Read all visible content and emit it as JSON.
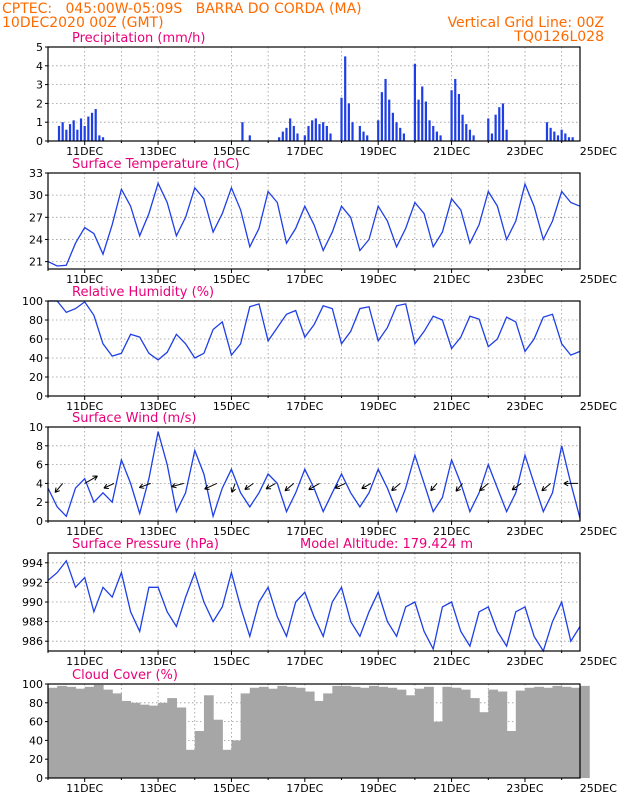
{
  "header": {
    "line1": "CPTEC:   045:00W-05:09S   BARRA DO CORDA (MA)",
    "line2": "10DEC2020 00Z (GMT)",
    "grid_note": "Vertical Grid Line: 00Z",
    "run_id": "TQ0126L028"
  },
  "colors": {
    "header": "#ff6a00",
    "title": "#e8007a",
    "series": "#1f3fe6",
    "cloud": "#a6a6a6",
    "grid": "#9a9a9a"
  },
  "chart_data": [
    {
      "id": "precip",
      "type": "bar",
      "title": "Precipitation (mm/h)",
      "ylim": [
        0,
        5
      ],
      "yticks": [
        0,
        1,
        2,
        3,
        4,
        5
      ],
      "xtick_labels": [
        "11DEC",
        "13DEC",
        "15DEC",
        "17DEC",
        "19DEC",
        "21DEC",
        "23DEC",
        "25DEC"
      ],
      "x": [
        0.3,
        0.4,
        0.5,
        0.6,
        0.7,
        0.8,
        0.9,
        1.0,
        1.1,
        1.2,
        1.3,
        1.4,
        1.5,
        5.3,
        5.5,
        6.3,
        6.4,
        6.5,
        6.6,
        6.7,
        6.8,
        7.0,
        7.1,
        7.2,
        7.3,
        7.4,
        7.5,
        7.6,
        7.7,
        8.0,
        8.1,
        8.2,
        8.3,
        8.5,
        8.6,
        8.7,
        9.0,
        9.1,
        9.2,
        9.3,
        9.4,
        9.5,
        9.6,
        9.7,
        10.0,
        10.1,
        10.2,
        10.3,
        10.4,
        10.5,
        10.6,
        10.7,
        11.0,
        11.1,
        11.2,
        11.3,
        11.4,
        11.5,
        11.6,
        12.0,
        12.1,
        12.2,
        12.3,
        12.4,
        12.5,
        13.6,
        13.7,
        13.8,
        13.9,
        14.0,
        14.1,
        14.2,
        14.3
      ],
      "values": [
        0.8,
        1.0,
        0.6,
        0.9,
        1.1,
        0.6,
        1.2,
        0.8,
        1.3,
        1.5,
        1.7,
        0.3,
        0.2,
        1.0,
        0.3,
        0.2,
        0.5,
        0.7,
        1.2,
        0.8,
        0.4,
        0.3,
        0.8,
        1.1,
        1.2,
        0.9,
        1.0,
        0.8,
        0.4,
        2.3,
        4.5,
        2.0,
        1.0,
        0.8,
        0.5,
        0.3,
        1.1,
        2.6,
        3.3,
        2.2,
        1.5,
        1.0,
        0.7,
        0.4,
        4.1,
        2.2,
        2.9,
        2.1,
        1.1,
        0.8,
        0.5,
        0.3,
        2.7,
        3.3,
        2.5,
        1.4,
        0.9,
        0.6,
        0.3,
        1.2,
        0.4,
        1.4,
        1.8,
        2.0,
        0.6,
        1.0,
        0.7,
        0.5,
        0.3,
        0.6,
        0.4,
        0.2,
        0.2
      ]
    },
    {
      "id": "temperature",
      "type": "line",
      "title": "Surface Temperature (nC)",
      "ylim": [
        20,
        33
      ],
      "yticks": [
        21,
        24,
        27,
        30,
        33
      ],
      "xtick_labels": [
        "11DEC",
        "13DEC",
        "15DEC",
        "17DEC",
        "19DEC",
        "21DEC",
        "23DEC",
        "25DEC"
      ],
      "x": [
        0,
        0.25,
        0.5,
        0.75,
        1.0,
        1.25,
        1.5,
        1.75,
        2.0,
        2.25,
        2.5,
        2.75,
        3.0,
        3.25,
        3.5,
        3.75,
        4.0,
        4.25,
        4.5,
        4.75,
        5.0,
        5.25,
        5.5,
        5.75,
        6.0,
        6.25,
        6.5,
        6.75,
        7.0,
        7.25,
        7.5,
        7.75,
        8.0,
        8.25,
        8.5,
        8.75,
        9.0,
        9.25,
        9.5,
        9.75,
        10.0,
        10.25,
        10.5,
        10.75,
        11.0,
        11.25,
        11.5,
        11.75,
        12.0,
        12.25,
        12.5,
        12.75,
        13.0,
        13.25,
        13.5,
        13.75,
        14.0,
        14.25,
        14.5
      ],
      "values": [
        21.0,
        20.4,
        20.5,
        23.5,
        25.6,
        24.8,
        22.0,
        26.0,
        30.8,
        28.5,
        24.5,
        27.5,
        31.6,
        29.0,
        24.5,
        27.0,
        31.0,
        29.5,
        25.0,
        27.5,
        31.0,
        28.0,
        23.0,
        25.5,
        30.5,
        29.0,
        23.5,
        25.5,
        28.5,
        26.0,
        22.5,
        25.0,
        28.5,
        27.0,
        22.5,
        24.0,
        28.5,
        26.5,
        23.0,
        25.5,
        29.0,
        27.5,
        23.0,
        25.0,
        29.5,
        28.0,
        23.5,
        26.0,
        30.5,
        28.5,
        24.0,
        26.5,
        31.5,
        28.5,
        24.0,
        26.5,
        30.5,
        29.0,
        28.5
      ]
    },
    {
      "id": "humidity",
      "type": "line",
      "title": "Relative Humidity (%)",
      "ylim": [
        0,
        100
      ],
      "yticks": [
        0,
        20,
        40,
        60,
        80,
        100
      ],
      "xtick_labels": [
        "11DEC",
        "13DEC",
        "15DEC",
        "17DEC",
        "19DEC",
        "21DEC",
        "23DEC",
        "25DEC"
      ],
      "x": [
        0,
        0.25,
        0.5,
        0.75,
        1.0,
        1.25,
        1.5,
        1.75,
        2.0,
        2.25,
        2.5,
        2.75,
        3.0,
        3.25,
        3.5,
        3.75,
        4.0,
        4.25,
        4.5,
        4.75,
        5.0,
        5.25,
        5.5,
        5.75,
        6.0,
        6.25,
        6.5,
        6.75,
        7.0,
        7.25,
        7.5,
        7.75,
        8.0,
        8.25,
        8.5,
        8.75,
        9.0,
        9.25,
        9.5,
        9.75,
        10.0,
        10.25,
        10.5,
        10.75,
        11.0,
        11.25,
        11.5,
        11.75,
        12.0,
        12.25,
        12.5,
        12.75,
        13.0,
        13.25,
        13.5,
        13.75,
        14.0,
        14.25,
        14.5
      ],
      "values": [
        100,
        100,
        88,
        92,
        99,
        85,
        55,
        42,
        45,
        65,
        62,
        45,
        38,
        46,
        65,
        55,
        40,
        45,
        70,
        78,
        43,
        55,
        94,
        97,
        58,
        72,
        86,
        90,
        62,
        75,
        95,
        92,
        55,
        68,
        92,
        94,
        58,
        72,
        95,
        97,
        55,
        68,
        84,
        80,
        50,
        62,
        84,
        81,
        52,
        60,
        83,
        78,
        47,
        60,
        83,
        86,
        55,
        43,
        47
      ]
    },
    {
      "id": "wind",
      "type": "line",
      "title": "Surface Wind (m/s)",
      "ylim": [
        0,
        10
      ],
      "yticks": [
        0,
        2,
        4,
        6,
        8,
        10
      ],
      "xtick_labels": [
        "11DEC",
        "13DEC",
        "15DEC",
        "17DEC",
        "19DEC",
        "21DEC",
        "23DEC",
        "25DEC"
      ],
      "x": [
        0,
        0.25,
        0.5,
        0.75,
        1.0,
        1.25,
        1.5,
        1.75,
        2.0,
        2.25,
        2.5,
        2.75,
        3.0,
        3.25,
        3.5,
        3.75,
        4.0,
        4.25,
        4.5,
        4.75,
        5.0,
        5.25,
        5.5,
        5.75,
        6.0,
        6.25,
        6.5,
        6.75,
        7.0,
        7.25,
        7.5,
        7.75,
        8.0,
        8.25,
        8.5,
        8.75,
        9.0,
        9.25,
        9.5,
        9.75,
        10.0,
        10.25,
        10.5,
        10.75,
        11.0,
        11.25,
        11.5,
        11.75,
        12.0,
        12.25,
        12.5,
        12.75,
        13.0,
        13.25,
        13.5,
        13.75,
        14.0,
        14.25,
        14.5
      ],
      "values": [
        3.5,
        1.5,
        0.5,
        3.5,
        4.5,
        2.0,
        3.0,
        2.0,
        6.5,
        4.0,
        0.8,
        4.5,
        9.5,
        6.0,
        1.0,
        3.0,
        7.5,
        5.0,
        0.5,
        3.5,
        5.5,
        3.0,
        1.5,
        3.0,
        5.0,
        4.0,
        1.0,
        3.0,
        5.5,
        3.5,
        1.0,
        3.0,
        5.0,
        3.0,
        1.5,
        3.0,
        5.5,
        3.5,
        1.0,
        3.5,
        7.0,
        4.0,
        1.0,
        2.5,
        6.5,
        4.0,
        1.0,
        3.0,
        6.0,
        3.5,
        1.0,
        3.0,
        7.0,
        4.0,
        1.0,
        3.0,
        8.0,
        4.0,
        0.3
      ],
      "vectors": [
        {
          "x": 0.4,
          "speed": 3.7,
          "dir": 220
        },
        {
          "x": 1.0,
          "speed": 4.6,
          "dir": 60
        },
        {
          "x": 1.8,
          "speed": 3.5,
          "dir": 245
        },
        {
          "x": 2.8,
          "speed": 3.8,
          "dir": 250
        },
        {
          "x": 3.7,
          "speed": 3.9,
          "dir": 255
        },
        {
          "x": 4.6,
          "speed": 4.2,
          "dir": 245
        },
        {
          "x": 5.1,
          "speed": 3.0,
          "dir": 200
        },
        {
          "x": 5.6,
          "speed": 3.3,
          "dir": 235
        },
        {
          "x": 6.2,
          "speed": 3.4,
          "dir": 240
        },
        {
          "x": 6.7,
          "speed": 3.6,
          "dir": 230
        },
        {
          "x": 7.4,
          "speed": 3.9,
          "dir": 240
        },
        {
          "x": 8.1,
          "speed": 3.5,
          "dir": 245
        },
        {
          "x": 8.8,
          "speed": 3.3,
          "dir": 240
        },
        {
          "x": 9.6,
          "speed": 3.5,
          "dir": 230
        },
        {
          "x": 10.6,
          "speed": 3.0,
          "dir": 220
        },
        {
          "x": 11.3,
          "speed": 3.2,
          "dir": 220
        },
        {
          "x": 12.0,
          "speed": 3.5,
          "dir": 230
        },
        {
          "x": 12.9,
          "speed": 3.5,
          "dir": 235
        },
        {
          "x": 13.7,
          "speed": 3.6,
          "dir": 230
        },
        {
          "x": 14.45,
          "speed": 4.5,
          "dir": 270
        }
      ]
    },
    {
      "id": "pressure",
      "type": "line",
      "title": "Surface Pressure (hPa)",
      "subtitle": "Model Altitude: 179.424 m",
      "ylim": [
        985,
        995
      ],
      "yticks": [
        986,
        988,
        990,
        992,
        994
      ],
      "xtick_labels": [
        "11DEC",
        "13DEC",
        "15DEC",
        "17DEC",
        "19DEC",
        "21DEC",
        "23DEC",
        "25DEC"
      ],
      "x": [
        0,
        0.25,
        0.5,
        0.75,
        1.0,
        1.25,
        1.5,
        1.75,
        2.0,
        2.25,
        2.5,
        2.75,
        3.0,
        3.25,
        3.5,
        3.75,
        4.0,
        4.25,
        4.5,
        4.75,
        5.0,
        5.25,
        5.5,
        5.75,
        6.0,
        6.25,
        6.5,
        6.75,
        7.0,
        7.25,
        7.5,
        7.75,
        8.0,
        8.25,
        8.5,
        8.75,
        9.0,
        9.25,
        9.5,
        9.75,
        10.0,
        10.25,
        10.5,
        10.75,
        11.0,
        11.25,
        11.5,
        11.75,
        12.0,
        12.25,
        12.5,
        12.75,
        13.0,
        13.25,
        13.5,
        13.75,
        14.0,
        14.25,
        14.5
      ],
      "values": [
        992.2,
        993.0,
        994.2,
        991.5,
        992.5,
        989.0,
        991.5,
        990.5,
        993.0,
        989.0,
        987.0,
        991.5,
        991.5,
        989.0,
        987.5,
        990.5,
        993.0,
        990.0,
        988.0,
        989.5,
        993.0,
        989.5,
        986.5,
        990.0,
        991.5,
        988.5,
        986.5,
        990.0,
        991.0,
        988.5,
        986.5,
        990.0,
        991.5,
        988.0,
        986.5,
        989.0,
        991.0,
        988.0,
        986.5,
        989.5,
        990.0,
        987.0,
        985.2,
        989.5,
        990.0,
        987.0,
        985.5,
        989.0,
        989.5,
        987.0,
        985.5,
        989.0,
        989.5,
        986.5,
        985.0,
        988.0,
        990.0,
        986.0,
        987.5
      ]
    },
    {
      "id": "cloud",
      "type": "area",
      "title": "Cloud Cover (%)",
      "ylim": [
        0,
        100
      ],
      "yticks": [
        0,
        20,
        40,
        60,
        80,
        100
      ],
      "xtick_labels": [
        "11DEC",
        "13DEC",
        "15DEC",
        "17DEC",
        "19DEC",
        "21DEC",
        "23DEC",
        "25DEC"
      ],
      "x": [
        0,
        0.25,
        0.5,
        0.75,
        1.0,
        1.25,
        1.5,
        1.75,
        2.0,
        2.25,
        2.5,
        2.75,
        3.0,
        3.25,
        3.5,
        3.75,
        4.0,
        4.25,
        4.5,
        4.75,
        5.0,
        5.25,
        5.5,
        5.75,
        6.0,
        6.25,
        6.5,
        6.75,
        7.0,
        7.25,
        7.5,
        7.75,
        8.0,
        8.25,
        8.5,
        8.75,
        9.0,
        9.25,
        9.5,
        9.75,
        10.0,
        10.25,
        10.5,
        10.75,
        11.0,
        11.25,
        11.5,
        11.75,
        12.0,
        12.25,
        12.5,
        12.75,
        13.0,
        13.25,
        13.5,
        13.75,
        14.0,
        14.25,
        14.5
      ],
      "values": [
        96,
        98,
        97,
        95,
        97,
        99,
        94,
        90,
        82,
        80,
        78,
        77,
        80,
        85,
        75,
        30,
        50,
        88,
        62,
        30,
        40,
        90,
        96,
        97,
        95,
        98,
        97,
        96,
        92,
        82,
        90,
        98,
        98,
        97,
        96,
        98,
        97,
        96,
        94,
        88,
        95,
        97,
        60,
        97,
        96,
        94,
        85,
        70,
        94,
        92,
        50,
        93,
        96,
        97,
        96,
        98,
        97,
        96,
        98
      ]
    }
  ]
}
